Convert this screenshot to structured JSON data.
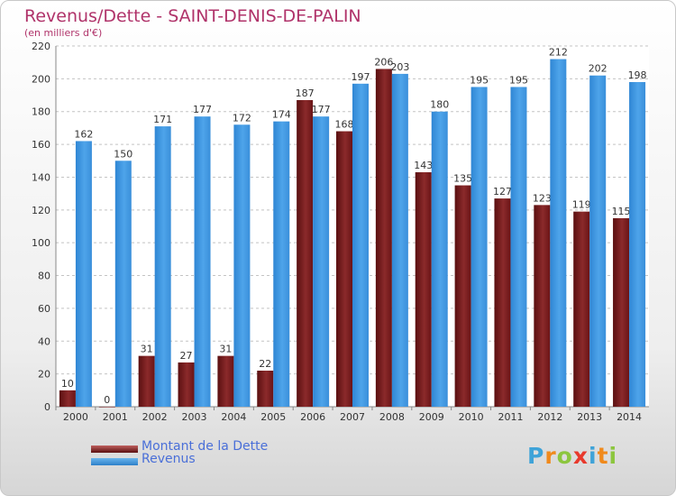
{
  "title": "Revenus/Dette - SAINT-DENIS-DE-PALIN",
  "subtitle": "(en milliers d'€)",
  "chart_data": {
    "type": "bar",
    "categories": [
      "2000",
      "2001",
      "2002",
      "2003",
      "2004",
      "2005",
      "2006",
      "2007",
      "2008",
      "2009",
      "2010",
      "2011",
      "2012",
      "2013",
      "2014"
    ],
    "series": [
      {
        "name": "Montant de la Dette",
        "values": [
          10,
          0,
          31,
          27,
          31,
          22,
          187,
          168,
          206,
          143,
          135,
          127,
          123,
          119,
          115
        ],
        "color": "#7a1a1c"
      },
      {
        "name": "Revenus",
        "values": [
          162,
          150,
          171,
          177,
          172,
          174,
          177,
          197,
          203,
          180,
          195,
          195,
          212,
          202,
          198
        ],
        "color": "#3d93de"
      }
    ],
    "ylim": [
      0,
      220
    ],
    "yticks": [
      0,
      20,
      40,
      60,
      80,
      100,
      120,
      140,
      160,
      180,
      200,
      220
    ],
    "grid": true,
    "legend": "bottom-left"
  },
  "logo": {
    "letters": [
      "P",
      "r",
      "o",
      "x",
      "i",
      "t",
      "i"
    ],
    "colors": [
      "#3fa3d8",
      "#f08a1c",
      "#8cc63e",
      "#e8392c",
      "#3fa3d8",
      "#f08a1c",
      "#8cc63e"
    ]
  }
}
